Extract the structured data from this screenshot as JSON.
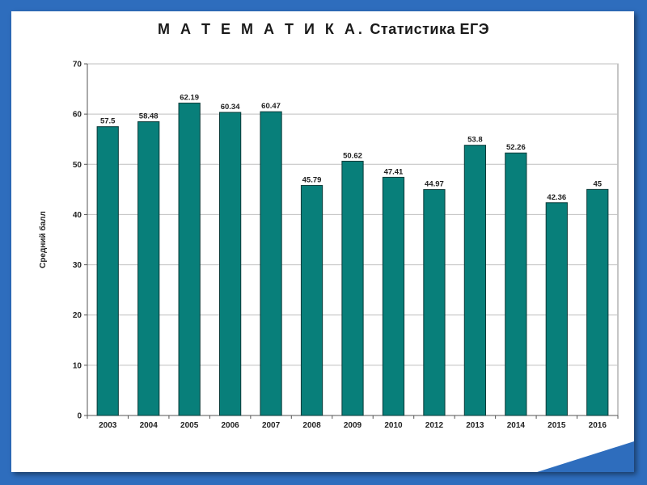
{
  "colors": {
    "frame": "#2e6dbd",
    "bar_fill": "#087f7a",
    "bar_stroke": "#0a3a38",
    "grid": "#bfbfbf",
    "plot_bg": "#ffffff"
  },
  "chart_data": {
    "type": "bar",
    "title_part1": "М А Т Е М А Т И К А.",
    "title_part2": "Статистика ЕГЭ",
    "xlabel": "",
    "ylabel": "Средний балл",
    "ylim": [
      0,
      70
    ],
    "yticks": [
      0,
      10,
      20,
      30,
      40,
      50,
      60,
      70
    ],
    "grid": true,
    "legend": "none",
    "categories": [
      "2003",
      "2004",
      "2005",
      "2006",
      "2007",
      "2008",
      "2009",
      "2010",
      "2012",
      "2013",
      "2014",
      "2015",
      "2016"
    ],
    "values": [
      57.5,
      58.48,
      62.19,
      60.34,
      60.47,
      45.79,
      50.62,
      47.41,
      44.97,
      53.8,
      52.26,
      42.36,
      45
    ],
    "value_labels": [
      "57.5",
      "58.48",
      "62.19",
      "60.34",
      "60.47",
      "45.79",
      "50.62",
      "47.41",
      "44.97",
      "53.8",
      "52.26",
      "42.36",
      "45"
    ]
  }
}
